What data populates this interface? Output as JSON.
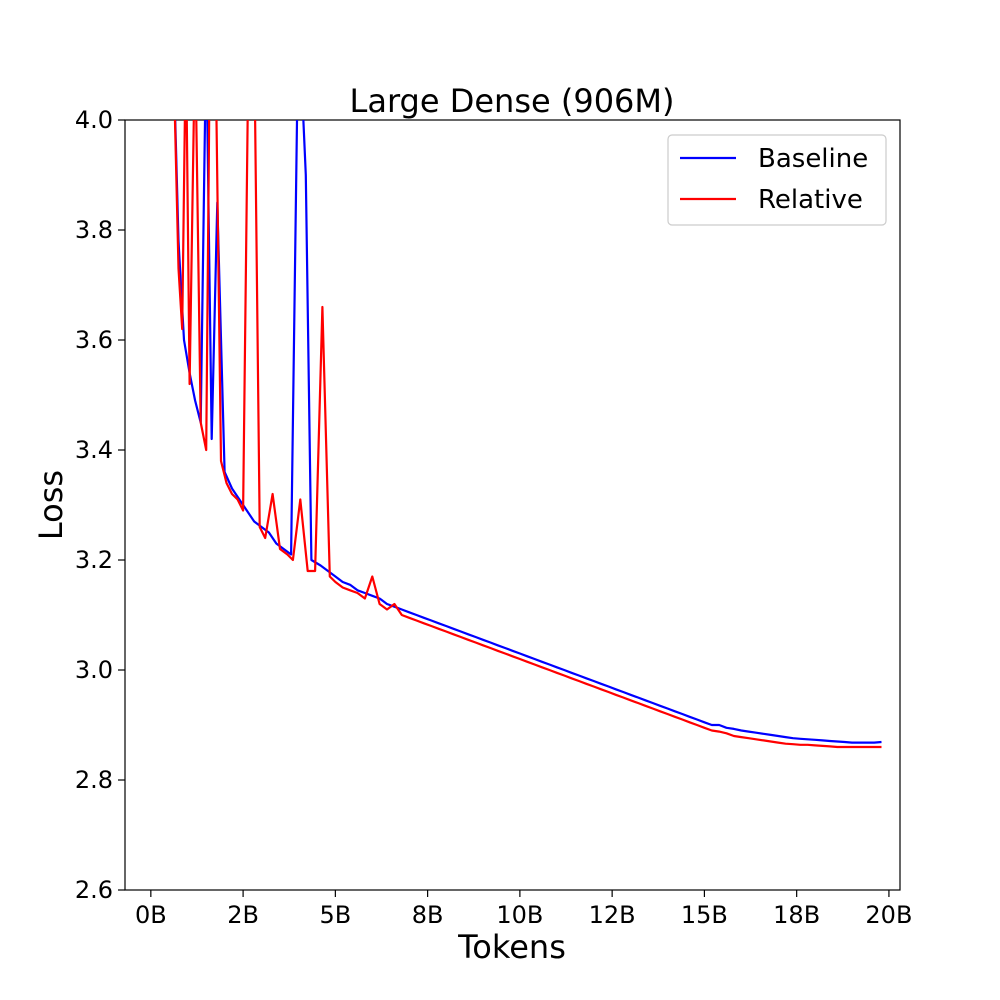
{
  "chart_data": {
    "type": "line",
    "title": "Large Dense (906M)",
    "xlabel": "Tokens",
    "ylabel": "Loss",
    "xlim": [
      -0.7,
      20.3
    ],
    "ylim": [
      2.6,
      4.0
    ],
    "x_ticks": [
      {
        "value": 0,
        "label": "0B"
      },
      {
        "value": 2.5,
        "label": "2B"
      },
      {
        "value": 5,
        "label": "5B"
      },
      {
        "value": 7.5,
        "label": "8B"
      },
      {
        "value": 10,
        "label": "10B"
      },
      {
        "value": 12.5,
        "label": "12B"
      },
      {
        "value": 15,
        "label": "15B"
      },
      {
        "value": 17.5,
        "label": "18B"
      },
      {
        "value": 20,
        "label": "20B"
      }
    ],
    "y_ticks": [
      {
        "value": 2.6,
        "label": "2.6"
      },
      {
        "value": 2.8,
        "label": "2.8"
      },
      {
        "value": 3.0,
        "label": "3.0"
      },
      {
        "value": 3.2,
        "label": "3.2"
      },
      {
        "value": 3.4,
        "label": "3.4"
      },
      {
        "value": 3.6,
        "label": "3.6"
      },
      {
        "value": 3.8,
        "label": "3.8"
      },
      {
        "value": 4.0,
        "label": "4.0"
      }
    ],
    "grid": false,
    "legend_position": "top-right",
    "series": [
      {
        "name": "Baseline",
        "color": "#0000ff",
        "points": [
          [
            0.6,
            4.15
          ],
          [
            0.75,
            3.78
          ],
          [
            0.9,
            3.6
          ],
          [
            1.05,
            3.54
          ],
          [
            1.2,
            3.49
          ],
          [
            1.35,
            3.45
          ],
          [
            1.5,
            4.15
          ],
          [
            1.65,
            3.42
          ],
          [
            1.8,
            3.85
          ],
          [
            2.0,
            3.36
          ],
          [
            2.2,
            3.33
          ],
          [
            2.4,
            3.31
          ],
          [
            2.6,
            3.29
          ],
          [
            2.8,
            3.27
          ],
          [
            3.0,
            3.26
          ],
          [
            3.2,
            3.25
          ],
          [
            3.4,
            3.23
          ],
          [
            3.6,
            3.22
          ],
          [
            3.8,
            3.21
          ],
          [
            4.0,
            4.2
          ],
          [
            4.2,
            3.9
          ],
          [
            4.35,
            3.2
          ],
          [
            4.6,
            3.19
          ],
          [
            4.8,
            3.18
          ],
          [
            5.0,
            3.17
          ],
          [
            5.2,
            3.16
          ],
          [
            5.4,
            3.155
          ],
          [
            5.6,
            3.145
          ],
          [
            5.8,
            3.14
          ],
          [
            6.0,
            3.135
          ],
          [
            6.2,
            3.13
          ],
          [
            6.4,
            3.12
          ],
          [
            6.6,
            3.115
          ],
          [
            6.8,
            3.11
          ],
          [
            7.0,
            3.105
          ],
          [
            7.2,
            3.1
          ],
          [
            7.4,
            3.095
          ],
          [
            7.6,
            3.09
          ],
          [
            7.8,
            3.085
          ],
          [
            8.0,
            3.08
          ],
          [
            8.2,
            3.075
          ],
          [
            8.4,
            3.07
          ],
          [
            8.6,
            3.065
          ],
          [
            8.8,
            3.06
          ],
          [
            9.0,
            3.055
          ],
          [
            9.2,
            3.05
          ],
          [
            9.4,
            3.045
          ],
          [
            9.6,
            3.04
          ],
          [
            9.8,
            3.035
          ],
          [
            10.0,
            3.03
          ],
          [
            10.2,
            3.025
          ],
          [
            10.4,
            3.02
          ],
          [
            10.6,
            3.015
          ],
          [
            10.8,
            3.01
          ],
          [
            11.0,
            3.005
          ],
          [
            11.2,
            3.0
          ],
          [
            11.4,
            2.995
          ],
          [
            11.6,
            2.99
          ],
          [
            11.8,
            2.985
          ],
          [
            12.0,
            2.98
          ],
          [
            12.2,
            2.975
          ],
          [
            12.4,
            2.97
          ],
          [
            12.6,
            2.965
          ],
          [
            12.8,
            2.96
          ],
          [
            13.0,
            2.955
          ],
          [
            13.2,
            2.95
          ],
          [
            13.4,
            2.945
          ],
          [
            13.6,
            2.94
          ],
          [
            13.8,
            2.935
          ],
          [
            14.0,
            2.93
          ],
          [
            14.2,
            2.925
          ],
          [
            14.4,
            2.92
          ],
          [
            14.6,
            2.915
          ],
          [
            14.8,
            2.91
          ],
          [
            15.0,
            2.905
          ],
          [
            15.2,
            2.9
          ],
          [
            15.4,
            2.9
          ],
          [
            15.6,
            2.895
          ],
          [
            15.8,
            2.893
          ],
          [
            16.0,
            2.89
          ],
          [
            16.2,
            2.888
          ],
          [
            16.4,
            2.886
          ],
          [
            16.6,
            2.884
          ],
          [
            16.8,
            2.882
          ],
          [
            17.0,
            2.88
          ],
          [
            17.2,
            2.878
          ],
          [
            17.4,
            2.876
          ],
          [
            17.6,
            2.875
          ],
          [
            17.8,
            2.874
          ],
          [
            18.0,
            2.873
          ],
          [
            18.2,
            2.872
          ],
          [
            18.4,
            2.871
          ],
          [
            18.6,
            2.87
          ],
          [
            18.8,
            2.869
          ],
          [
            19.0,
            2.868
          ],
          [
            19.2,
            2.868
          ],
          [
            19.4,
            2.868
          ],
          [
            19.6,
            2.868
          ],
          [
            19.8,
            2.869
          ]
        ]
      },
      {
        "name": "Relative",
        "color": "#ff0000",
        "points": [
          [
            0.6,
            4.15
          ],
          [
            0.75,
            3.73
          ],
          [
            0.85,
            3.62
          ],
          [
            0.95,
            4.15
          ],
          [
            1.05,
            3.52
          ],
          [
            1.2,
            4.15
          ],
          [
            1.35,
            3.45
          ],
          [
            1.5,
            3.4
          ],
          [
            1.6,
            4.15
          ],
          [
            1.75,
            4.15
          ],
          [
            1.9,
            3.38
          ],
          [
            2.05,
            3.34
          ],
          [
            2.2,
            3.32
          ],
          [
            2.35,
            3.31
          ],
          [
            2.5,
            3.29
          ],
          [
            2.65,
            4.15
          ],
          [
            2.8,
            4.15
          ],
          [
            2.95,
            3.26
          ],
          [
            3.1,
            3.24
          ],
          [
            3.3,
            3.32
          ],
          [
            3.5,
            3.22
          ],
          [
            3.7,
            3.21
          ],
          [
            3.85,
            3.2
          ],
          [
            4.05,
            3.31
          ],
          [
            4.25,
            3.18
          ],
          [
            4.45,
            3.18
          ],
          [
            4.65,
            3.66
          ],
          [
            4.85,
            3.17
          ],
          [
            5.0,
            3.16
          ],
          [
            5.2,
            3.15
          ],
          [
            5.4,
            3.145
          ],
          [
            5.6,
            3.14
          ],
          [
            5.8,
            3.13
          ],
          [
            6.0,
            3.17
          ],
          [
            6.2,
            3.12
          ],
          [
            6.4,
            3.11
          ],
          [
            6.6,
            3.12
          ],
          [
            6.8,
            3.1
          ],
          [
            7.0,
            3.095
          ],
          [
            7.2,
            3.09
          ],
          [
            7.4,
            3.085
          ],
          [
            7.6,
            3.08
          ],
          [
            7.8,
            3.075
          ],
          [
            8.0,
            3.07
          ],
          [
            8.2,
            3.065
          ],
          [
            8.4,
            3.06
          ],
          [
            8.6,
            3.055
          ],
          [
            8.8,
            3.05
          ],
          [
            9.0,
            3.045
          ],
          [
            9.2,
            3.04
          ],
          [
            9.4,
            3.035
          ],
          [
            9.6,
            3.03
          ],
          [
            9.8,
            3.025
          ],
          [
            10.0,
            3.02
          ],
          [
            10.2,
            3.015
          ],
          [
            10.4,
            3.01
          ],
          [
            10.6,
            3.005
          ],
          [
            10.8,
            3.0
          ],
          [
            11.0,
            2.995
          ],
          [
            11.2,
            2.99
          ],
          [
            11.4,
            2.985
          ],
          [
            11.6,
            2.98
          ],
          [
            11.8,
            2.975
          ],
          [
            12.0,
            2.97
          ],
          [
            12.2,
            2.965
          ],
          [
            12.4,
            2.96
          ],
          [
            12.6,
            2.955
          ],
          [
            12.8,
            2.95
          ],
          [
            13.0,
            2.945
          ],
          [
            13.2,
            2.94
          ],
          [
            13.4,
            2.935
          ],
          [
            13.6,
            2.93
          ],
          [
            13.8,
            2.925
          ],
          [
            14.0,
            2.92
          ],
          [
            14.2,
            2.915
          ],
          [
            14.4,
            2.91
          ],
          [
            14.6,
            2.905
          ],
          [
            14.8,
            2.9
          ],
          [
            15.0,
            2.895
          ],
          [
            15.2,
            2.89
          ],
          [
            15.4,
            2.888
          ],
          [
            15.6,
            2.885
          ],
          [
            15.8,
            2.88
          ],
          [
            16.0,
            2.878
          ],
          [
            16.2,
            2.876
          ],
          [
            16.4,
            2.874
          ],
          [
            16.6,
            2.872
          ],
          [
            16.8,
            2.87
          ],
          [
            17.0,
            2.868
          ],
          [
            17.2,
            2.866
          ],
          [
            17.4,
            2.865
          ],
          [
            17.6,
            2.864
          ],
          [
            17.8,
            2.864
          ],
          [
            18.0,
            2.863
          ],
          [
            18.2,
            2.862
          ],
          [
            18.4,
            2.861
          ],
          [
            18.6,
            2.86
          ],
          [
            18.8,
            2.86
          ],
          [
            19.0,
            2.86
          ],
          [
            19.2,
            2.86
          ],
          [
            19.4,
            2.86
          ],
          [
            19.6,
            2.86
          ],
          [
            19.8,
            2.86
          ]
        ]
      }
    ]
  }
}
